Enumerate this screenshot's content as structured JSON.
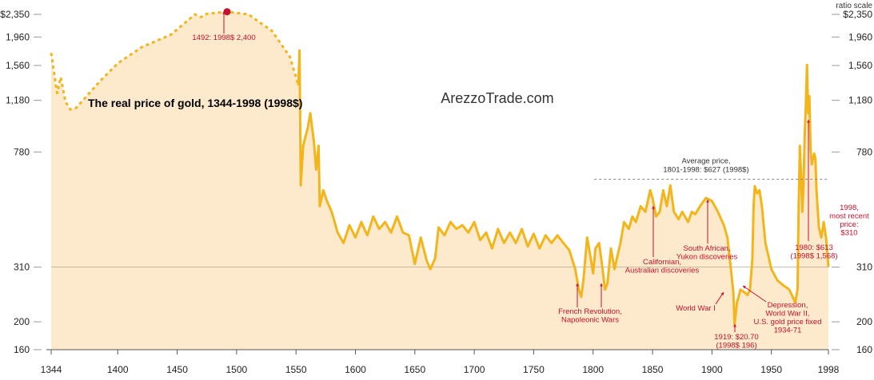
{
  "chart_data": {
    "type": "area-line",
    "title": "The real price of gold, 1344-1998 (1998$)",
    "watermark": "ArezzoTrade.com",
    "y_axis_note": "ratio scale",
    "log_scale": true,
    "xlim": [
      1344,
      1998
    ],
    "xticks": [
      1344,
      1400,
      1450,
      1500,
      1550,
      1600,
      1650,
      1700,
      1750,
      1800,
      1850,
      1900,
      1950,
      1998
    ],
    "ylim": [
      160,
      2350
    ],
    "yticks": [
      {
        "value": 2350,
        "label": "$2,350"
      },
      {
        "value": 1960,
        "label": "1,960"
      },
      {
        "value": 1560,
        "label": "1,560"
      },
      {
        "value": 1180,
        "label": "1,180"
      },
      780,
      310,
      200,
      160
    ],
    "reference_line": 310,
    "area_color": "#fde9cc",
    "series": [
      {
        "color": "#f2b51c",
        "dashed": true,
        "x": [
          1344,
          1346,
          1349,
          1352,
          1356,
          1360,
          1365,
          1385,
          1400,
          1420,
          1445,
          1465,
          1470,
          1475,
          1492,
          1510,
          1530,
          1545,
          1550,
          1552
        ],
        "values": [
          1725,
          1515,
          1250,
          1420,
          1170,
          1097,
          1110,
          1375,
          1587,
          1805,
          2000,
          2350,
          2300,
          2360,
          2400,
          2350,
          2055,
          1670,
          1420,
          1330
        ]
      },
      {
        "color": "#f2b51c",
        "dashed": false,
        "x": [
          1552,
          1553,
          1554,
          1556,
          1560,
          1562,
          1565,
          1567,
          1569,
          1570,
          1573,
          1576,
          1580,
          1585,
          1590,
          1595,
          1600,
          1605,
          1610,
          1615,
          1620,
          1625,
          1630,
          1635,
          1640,
          1645,
          1650,
          1655,
          1660,
          1663,
          1667,
          1670,
          1675,
          1680,
          1685,
          1690,
          1695,
          1700,
          1705,
          1710,
          1715,
          1720,
          1725,
          1730,
          1735,
          1740,
          1745,
          1750,
          1755,
          1760,
          1765,
          1770,
          1775,
          1780,
          1785,
          1788,
          1790,
          1792,
          1795,
          1798,
          1800,
          1802,
          1805,
          1808,
          1810,
          1812,
          1815,
          1818,
          1820,
          1823,
          1826,
          1830,
          1833,
          1836,
          1840,
          1844,
          1848,
          1850,
          1853,
          1856,
          1859,
          1862,
          1865,
          1868,
          1872,
          1875,
          1880,
          1883,
          1886,
          1890,
          1895,
          1900,
          1905,
          1910,
          1913,
          1916,
          1918,
          1919,
          1921,
          1924,
          1927,
          1930,
          1932,
          1934,
          1935,
          1936,
          1938,
          1940,
          1942,
          1945,
          1950,
          1955,
          1960,
          1965,
          1968,
          1970,
          1972,
          1973,
          1974,
          1975,
          1976,
          1977,
          1978,
          1979,
          1980,
          1981,
          1982,
          1983,
          1984,
          1985,
          1986,
          1987,
          1988,
          1990,
          1992,
          1994,
          1996,
          1998
        ],
        "values": [
          1330,
          1760,
          597,
          820,
          950,
          1065,
          850,
          677,
          820,
          505,
          574,
          527,
          483,
          409,
          376,
          434,
          393,
          445,
          400,
          465,
          421,
          445,
          409,
          465,
          409,
          400,
          318,
          393,
          326,
          305,
          332,
          426,
          400,
          445,
          421,
          434,
          409,
          445,
          385,
          409,
          360,
          421,
          376,
          409,
          376,
          421,
          366,
          405,
          360,
          400,
          376,
          400,
          376,
          355,
          305,
          259,
          244,
          283,
          393,
          332,
          295,
          360,
          376,
          305,
          259,
          271,
          360,
          305,
          332,
          376,
          445,
          421,
          465,
          445,
          505,
          483,
          574,
          540,
          465,
          483,
          574,
          505,
          597,
          483,
          455,
          483,
          445,
          483,
          474,
          505,
          540,
          527,
          483,
          434,
          393,
          305,
          254,
          196,
          233,
          259,
          254,
          248,
          259,
          332,
          505,
          593,
          560,
          574,
          505,
          376,
          305,
          279,
          268,
          259,
          244,
          233,
          259,
          505,
          820,
          650,
          483,
          597,
          880,
          1149,
          1568,
          1065,
          1220,
          790,
          706,
          740,
          770,
          740,
          574,
          426,
          393,
          445,
          393,
          310
        ]
      }
    ],
    "marker": {
      "x": 1492,
      "color": "#c8102e"
    },
    "average_line": {
      "lines": [
        "Average price,",
        "1801-1998: $627 (1998$)"
      ],
      "value": 627,
      "x": [
        1801,
        1998
      ]
    },
    "annotation_color": "#c8102e",
    "annotations": [
      {
        "lines": [
          "1492: 1998$ 2,400"
        ]
      },
      {
        "lines": [
          "French Revolution,",
          "Napoleonic Wars"
        ]
      },
      {
        "lines": [
          "Californian,",
          "Australian discoveries"
        ]
      },
      {
        "lines": [
          "South African,",
          "Yukon discoveries"
        ]
      },
      {
        "lines": [
          "World War I"
        ]
      },
      {
        "lines": [
          "Depression,",
          "World War II,",
          "U.S. gold price fixed",
          "1934-71"
        ]
      },
      {
        "lines": [
          "1919: $20.70",
          "(1998$ 196)"
        ]
      },
      {
        "lines": [
          "1980: $613",
          "(1998$ 1,568)"
        ]
      },
      {
        "lines": [
          "1998,",
          "most recent",
          "price:",
          "$310"
        ]
      }
    ]
  }
}
